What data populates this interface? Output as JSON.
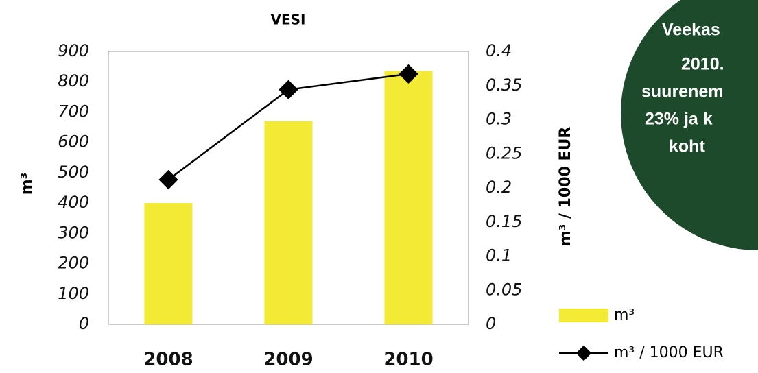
{
  "chart_data": {
    "type": "bar-line",
    "title": "VESI",
    "categories": [
      "2008",
      "2009",
      "2010"
    ],
    "series": [
      {
        "name": "m³",
        "type": "bar",
        "color": "#f3ea35",
        "values": [
          400,
          670,
          835
        ]
      },
      {
        "name": "m³ / 1000 EUR",
        "type": "line",
        "color": "#000000",
        "axis": "y2",
        "values": [
          0.212,
          0.344,
          0.367
        ]
      }
    ],
    "ylabel": "m³",
    "y2label": "m³ / 1000 EUR",
    "ylim": [
      0,
      900
    ],
    "yticks": [
      0,
      100,
      200,
      300,
      400,
      500,
      600,
      700,
      800,
      900
    ],
    "y2lim": [
      0,
      0.4
    ],
    "y2ticks": [
      0,
      0.05,
      0.1,
      0.15,
      0.2,
      0.25,
      0.3,
      0.35,
      0.4
    ],
    "grid": false,
    "legend": "lower right",
    "annotation_lines": [
      "Veekas",
      "2010.",
      "suurenem",
      "23% ja k",
      "koht"
    ]
  }
}
